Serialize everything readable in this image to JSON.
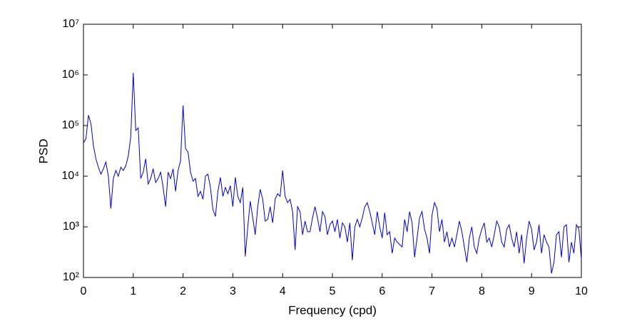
{
  "chart_data": {
    "type": "line",
    "xlabel": "Frequency (cpd)",
    "ylabel": "PSD",
    "color": "#0000cc",
    "log_y": true,
    "grid": false,
    "xlim": [
      0,
      10
    ],
    "xticks": [
      0,
      1,
      2,
      3,
      4,
      5,
      6,
      7,
      8,
      9,
      10
    ],
    "ylim": [
      100,
      10000000
    ],
    "yticks": [
      {
        "value": 100,
        "label": "10²"
      },
      {
        "value": 1000,
        "label": "10³"
      },
      {
        "value": 10000,
        "label": "10⁴"
      },
      {
        "value": 100000,
        "label": "10⁵"
      },
      {
        "value": 1000000,
        "label": "10⁶"
      },
      {
        "value": 10000000,
        "label": "10⁷"
      }
    ],
    "x": [
      0,
      0.05,
      0.1,
      0.15,
      0.2,
      0.25,
      0.3,
      0.35,
      0.4,
      0.45,
      0.5,
      0.55,
      0.6,
      0.65,
      0.7,
      0.75,
      0.8,
      0.85,
      0.9,
      0.95,
      1,
      1.05,
      1.1,
      1.15,
      1.2,
      1.25,
      1.3,
      1.35,
      1.4,
      1.45,
      1.5,
      1.55,
      1.6,
      1.65,
      1.7,
      1.75,
      1.8,
      1.85,
      1.9,
      1.95,
      2,
      2.05,
      2.1,
      2.15,
      2.2,
      2.25,
      2.3,
      2.35,
      2.4,
      2.45,
      2.5,
      2.55,
      2.6,
      2.65,
      2.7,
      2.75,
      2.8,
      2.85,
      2.9,
      2.95,
      3,
      3.05,
      3.1,
      3.15,
      3.2,
      3.25,
      3.3,
      3.35,
      3.4,
      3.45,
      3.5,
      3.55,
      3.6,
      3.65,
      3.7,
      3.75,
      3.8,
      3.85,
      3.9,
      3.95,
      4,
      4.05,
      4.1,
      4.15,
      4.2,
      4.25,
      4.3,
      4.35,
      4.4,
      4.45,
      4.5,
      4.55,
      4.6,
      4.65,
      4.7,
      4.75,
      4.8,
      4.85,
      4.9,
      4.95,
      5,
      5.05,
      5.1,
      5.15,
      5.2,
      5.25,
      5.3,
      5.35,
      5.4,
      5.45,
      5.5,
      5.55,
      5.6,
      5.65,
      5.7,
      5.75,
      5.8,
      5.85,
      5.9,
      5.95,
      6,
      6.05,
      6.1,
      6.15,
      6.2,
      6.25,
      6.3,
      6.35,
      6.4,
      6.45,
      6.5,
      6.55,
      6.6,
      6.65,
      6.7,
      6.75,
      6.8,
      6.85,
      6.9,
      6.95,
      7,
      7.05,
      7.1,
      7.15,
      7.2,
      7.25,
      7.3,
      7.35,
      7.4,
      7.45,
      7.5,
      7.55,
      7.6,
      7.65,
      7.7,
      7.75,
      7.8,
      7.85,
      7.9,
      7.95,
      8,
      8.05,
      8.1,
      8.15,
      8.2,
      8.25,
      8.3,
      8.35,
      8.4,
      8.45,
      8.5,
      8.55,
      8.6,
      8.65,
      8.7,
      8.75,
      8.8,
      8.85,
      8.9,
      8.95,
      9,
      9.05,
      9.1,
      9.15,
      9.2,
      9.25,
      9.3,
      9.35,
      9.4,
      9.45,
      9.5,
      9.55,
      9.6,
      9.65,
      9.7,
      9.75,
      9.8,
      9.85,
      9.9,
      9.95,
      10
    ],
    "values": [
      45000,
      55000,
      160000,
      110000,
      40000,
      22000,
      15000,
      11000,
      14000,
      19000,
      10000,
      2300,
      9000,
      13000,
      10000,
      15000,
      13000,
      16000,
      25000,
      60000,
      1100000,
      80000,
      90000,
      9000,
      12000,
      22000,
      7000,
      9000,
      14000,
      7500,
      9000,
      12000,
      6000,
      2500,
      12000,
      9000,
      14000,
      5000,
      13000,
      20000,
      250000,
      35000,
      30000,
      12000,
      8000,
      9000,
      4000,
      5000,
      3500,
      10000,
      11000,
      6000,
      2200,
      1600,
      5000,
      9500,
      4000,
      6000,
      4500,
      6500,
      2500,
      9500,
      4000,
      3000,
      6000,
      260,
      1000,
      3200,
      1500,
      700,
      2500,
      5500,
      3500,
      1300,
      1400,
      2500,
      1200,
      3500,
      4500,
      4000,
      13000,
      4000,
      3000,
      3500,
      2000,
      350,
      2500,
      2000,
      700,
      1300,
      800,
      800,
      1500,
      2500,
      1500,
      800,
      2000,
      1600,
      700,
      1100,
      1300,
      800,
      1400,
      600,
      1200,
      1000,
      500,
      1200,
      220,
      1000,
      1400,
      1000,
      1500,
      2500,
      3000,
      2000,
      1200,
      700,
      2000,
      1000,
      600,
      1900,
      700,
      800,
      300,
      600,
      500,
      450,
      400,
      1400,
      800,
      2000,
      1200,
      250,
      600,
      1500,
      2000,
      900,
      600,
      300,
      1700,
      3000,
      2300,
      800,
      1400,
      500,
      800,
      400,
      600,
      400,
      700,
      1300,
      800,
      400,
      200,
      600,
      1000,
      400,
      300,
      600,
      900,
      1200,
      500,
      600,
      400,
      700,
      1300,
      1000,
      500,
      400,
      900,
      1100,
      600,
      400,
      800,
      300,
      700,
      190,
      600,
      1300,
      900,
      350,
      500,
      1100,
      300,
      700,
      500,
      400,
      120,
      200,
      700,
      800,
      250,
      1000,
      1100,
      200,
      500,
      300,
      1100,
      900,
      230
    ]
  }
}
